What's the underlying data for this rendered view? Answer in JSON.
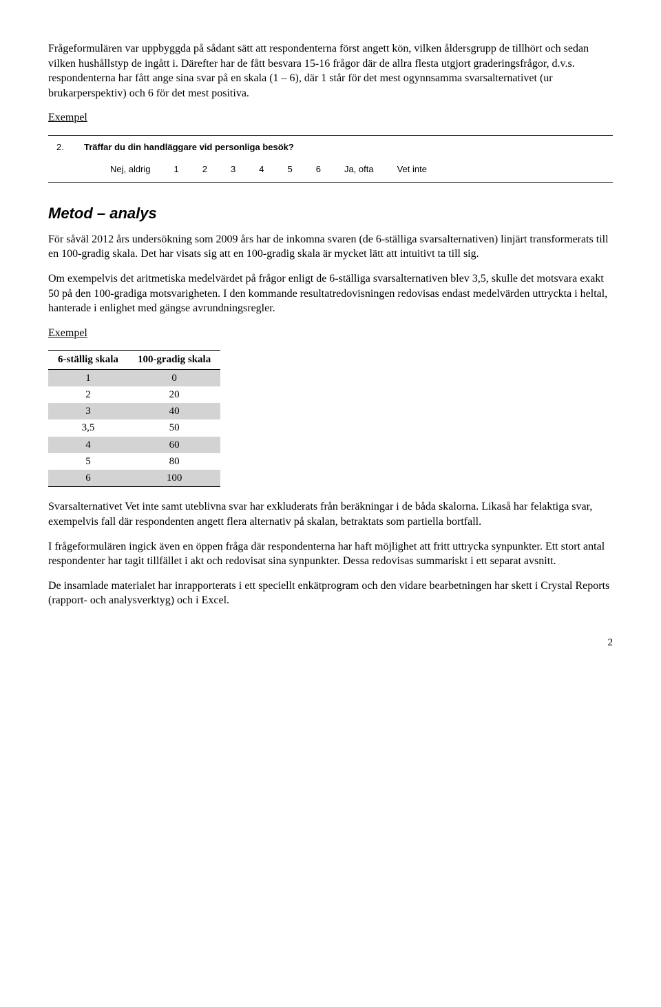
{
  "para1": "Frågeformulären var uppbyggda på sådant sätt att respondenterna först angett kön, vilken åldersgrupp de tillhört och sedan vilken hushållstyp de ingått i. Därefter har de fått besvara 15-16 frågor där de allra flesta utgjort graderingsfrågor, d.v.s. respondenterna har fått ange sina svar på en skala (1 – 6), där 1 står för det mest ogynnsamma svarsalternativet (ur brukarperspektiv) och 6 för det mest positiva.",
  "example_label": "Exempel",
  "figure": {
    "qnum": "2.",
    "qtext": "Träffar du din handläggare vid personliga besök?",
    "options": [
      "Nej, aldrig",
      "1",
      "2",
      "3",
      "4",
      "5",
      "6",
      "Ja, ofta",
      "Vet inte"
    ]
  },
  "section_title": "Metod – analys",
  "para2": "För såväl 2012 års undersökning som 2009 års har de inkomna svaren (de 6-ställiga svarsalternativen) linjärt transformerats till en 100-gradig skala. Det har visats sig att en 100-gradig skala är mycket lätt att intuitivt ta till sig.",
  "para3": "Om exempelvis det aritmetiska medelvärdet på frågor enligt de 6-ställiga svarsalternativen blev 3,5, skulle det motsvara exakt 50 på den 100-gradiga motsvarigheten. I den kommande resultatredovisningen redovisas endast medelvärden uttryckta i heltal, hanterade i enlighet med gängse avrundningsregler.",
  "table": {
    "headers": [
      "6-ställig skala",
      "100-gradig skala"
    ],
    "rows": [
      {
        "cells": [
          "1",
          "0"
        ],
        "shade": true
      },
      {
        "cells": [
          "2",
          "20"
        ],
        "shade": false
      },
      {
        "cells": [
          "3",
          "40"
        ],
        "shade": true
      },
      {
        "cells": [
          "3,5",
          "50"
        ],
        "shade": false
      },
      {
        "cells": [
          "4",
          "60"
        ],
        "shade": true
      },
      {
        "cells": [
          "5",
          "80"
        ],
        "shade": false
      },
      {
        "cells": [
          "6",
          "100"
        ],
        "shade": true
      }
    ]
  },
  "para4": "Svarsalternativet Vet inte samt uteblivna svar har exkluderats från beräkningar i de båda skalorna. Likaså har felaktiga svar, exempelvis fall där respondenten angett flera alternativ på skalan, betraktats som partiella bortfall.",
  "para5": "I frågeformulären ingick även en öppen fråga där respondenterna har haft möjlighet att fritt uttrycka synpunkter.  Ett stort antal respondenter har tagit tillfället i akt och redovisat sina synpunkter. Dessa redovisas summariskt i ett separat avsnitt.",
  "para6": "De insamlade materialet har inrapporterats i ett speciellt enkätprogram och den vidare bearbetningen har skett i Crystal Reports (rapport- och analysverktyg) och i Excel.",
  "page_number": "2"
}
